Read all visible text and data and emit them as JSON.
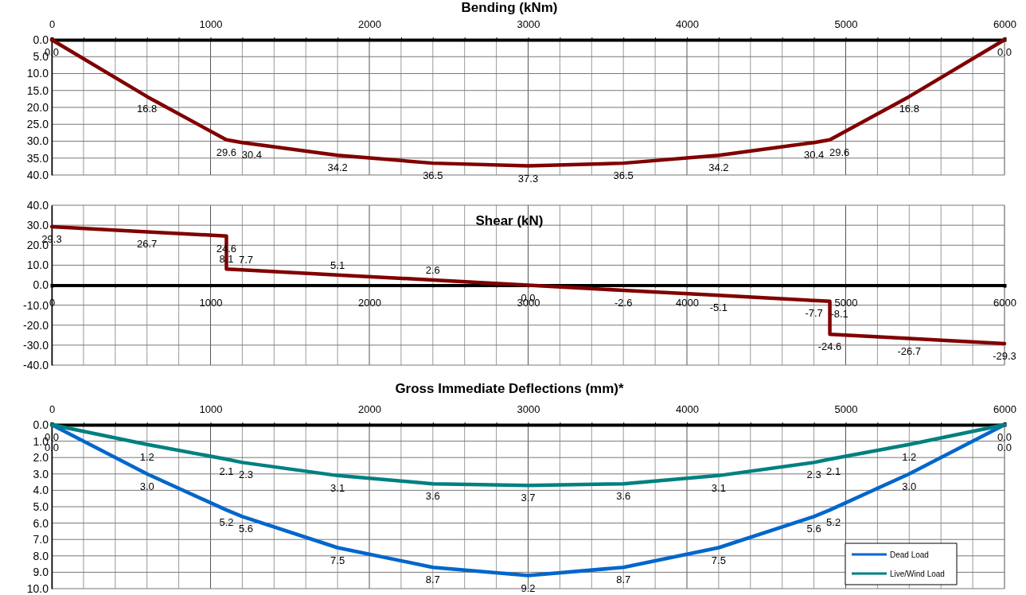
{
  "chart_data": [
    {
      "type": "line",
      "title": "Bending (kNm)",
      "x": [
        0,
        600,
        1100,
        1200,
        1800,
        2400,
        3000,
        3600,
        4200,
        4800,
        4900,
        5400,
        6000
      ],
      "series": [
        {
          "color": "#800000",
          "values": [
            0,
            16.8,
            29.6,
            30.4,
            34.2,
            36.5,
            37.3,
            36.5,
            34.2,
            30.4,
            29.6,
            16.8,
            0
          ],
          "value_labels": [
            "0.0",
            "16.8",
            "29.6",
            "30.4",
            "34.2",
            "36.5",
            "37.3",
            "36.5",
            "34.2",
            "30.4",
            "29.6",
            "16.8",
            "0.0"
          ]
        }
      ],
      "xlim": [
        0,
        6000
      ],
      "xticks": [
        0,
        {
          "value": 200,
          "label": null
        },
        {
          "value": 400,
          "label": null
        },
        {
          "value": 600,
          "label": null
        },
        {
          "value": 800,
          "label": null
        },
        1000,
        {
          "value": 1200,
          "label": null
        },
        {
          "value": 1400,
          "label": null
        },
        {
          "value": 1600,
          "label": null
        },
        {
          "value": 1800,
          "label": null
        },
        2000,
        {
          "value": 2200,
          "label": null
        },
        {
          "value": 2400,
          "label": null
        },
        {
          "value": 2600,
          "label": null
        },
        {
          "value": 2800,
          "label": null
        },
        3000,
        {
          "value": 3200,
          "label": null
        },
        {
          "value": 3400,
          "label": null
        },
        {
          "value": 3600,
          "label": null
        },
        {
          "value": 3800,
          "label": null
        },
        4000,
        {
          "value": 4200,
          "label": null
        },
        {
          "value": 4400,
          "label": null
        },
        {
          "value": 4600,
          "label": null
        },
        {
          "value": 4800,
          "label": null
        },
        5000,
        {
          "value": 5200,
          "label": null
        },
        {
          "value": 5400,
          "label": null
        },
        {
          "value": 5600,
          "label": null
        },
        {
          "value": 5800,
          "label": null
        },
        6000
      ],
      "ylim": [
        40,
        0
      ],
      "yticks": [
        {
          "value": 0,
          "label": "0.0"
        },
        {
          "value": 5,
          "label": "5.0"
        },
        {
          "value": 10,
          "label": "10.0"
        },
        {
          "value": 15,
          "label": "15.0"
        },
        {
          "value": 20,
          "label": "20.0"
        },
        {
          "value": 25,
          "label": "25.0"
        },
        {
          "value": 30,
          "label": "30.0"
        },
        {
          "value": 35,
          "label": "35.0"
        },
        {
          "value": 40,
          "label": "40.0"
        }
      ],
      "grid": true
    },
    {
      "type": "line",
      "title": "Shear (kN)",
      "x": [
        0,
        600,
        1100,
        1100,
        1200,
        1800,
        2400,
        3000,
        3600,
        4200,
        4800,
        4900,
        4900,
        5400,
        6000
      ],
      "series": [
        {
          "color": "#800000",
          "values": [
            29.3,
            26.7,
            24.6,
            8.1,
            7.7,
            5.1,
            2.6,
            0,
            -2.6,
            -5.1,
            -7.7,
            -8.1,
            -24.6,
            -26.7,
            -29.3
          ],
          "value_labels": [
            "29.3",
            "26.7",
            "24.6",
            "8.1",
            "7.7",
            "5.1",
            "2.6",
            "0.0",
            "-2.6",
            "-5.1",
            "-7.7",
            "-8.1",
            "-24.6",
            "-26.7",
            "-29.3"
          ]
        }
      ],
      "xlim": [
        0,
        6000
      ],
      "xticks": [
        0,
        {
          "value": 200,
          "label": null
        },
        {
          "value": 400,
          "label": null
        },
        {
          "value": 600,
          "label": null
        },
        {
          "value": 800,
          "label": null
        },
        1000,
        {
          "value": 1200,
          "label": null
        },
        {
          "value": 1400,
          "label": null
        },
        {
          "value": 1600,
          "label": null
        },
        {
          "value": 1800,
          "label": null
        },
        2000,
        {
          "value": 2200,
          "label": null
        },
        {
          "value": 2400,
          "label": null
        },
        {
          "value": 2600,
          "label": null
        },
        {
          "value": 2800,
          "label": null
        },
        3000,
        {
          "value": 3200,
          "label": null
        },
        {
          "value": 3400,
          "label": null
        },
        {
          "value": 3600,
          "label": null
        },
        {
          "value": 3800,
          "label": null
        },
        4000,
        {
          "value": 4200,
          "label": null
        },
        {
          "value": 4400,
          "label": null
        },
        {
          "value": 4600,
          "label": null
        },
        {
          "value": 4800,
          "label": null
        },
        5000,
        {
          "value": 5200,
          "label": null
        },
        {
          "value": 5400,
          "label": null
        },
        {
          "value": 5600,
          "label": null
        },
        {
          "value": 5800,
          "label": null
        },
        6000
      ],
      "ylim": [
        -40,
        40
      ],
      "yticks": [
        {
          "value": -40,
          "label": "-40.0"
        },
        {
          "value": -30,
          "label": "-30.0"
        },
        {
          "value": -20,
          "label": "-20.0"
        },
        {
          "value": -10,
          "label": "-10.0"
        },
        {
          "value": 0,
          "label": "0.0"
        },
        {
          "value": 10,
          "label": "10.0"
        },
        {
          "value": 20,
          "label": "20.0"
        },
        {
          "value": 30,
          "label": "30.0"
        },
        {
          "value": 40,
          "label": "40.0"
        }
      ],
      "grid": true
    },
    {
      "type": "line",
      "title": "Gross Immediate Deflections (mm)*",
      "x": [
        0,
        600,
        1100,
        1200,
        1800,
        2400,
        3000,
        3600,
        4200,
        4800,
        4900,
        5400,
        6000
      ],
      "series": [
        {
          "name": "Dead Load",
          "color": "#0066cc",
          "values": [
            0,
            3.0,
            5.2,
            5.6,
            7.5,
            8.7,
            9.2,
            8.7,
            7.5,
            5.6,
            5.2,
            3.0,
            0
          ],
          "value_labels": [
            "0.0",
            "3.0",
            "5.2",
            "5.6",
            "7.5",
            "8.7",
            "9.2",
            "8.7",
            "7.5",
            "5.6",
            "5.2",
            "3.0",
            "0.0"
          ]
        },
        {
          "name": "Live/Wind Load",
          "color": "#008080",
          "values": [
            0,
            1.2,
            2.1,
            2.3,
            3.1,
            3.6,
            3.7,
            3.6,
            3.1,
            2.3,
            2.1,
            1.2,
            0
          ],
          "value_labels": [
            "0.0",
            "1.2",
            "2.1",
            "2.3",
            "3.1",
            "3.6",
            "3.7",
            "3.6",
            "3.1",
            "2.3",
            "2.1",
            "1.2",
            "0.0"
          ]
        }
      ],
      "xlim": [
        0,
        6000
      ],
      "xticks": [
        0,
        {
          "value": 200,
          "label": null
        },
        {
          "value": 400,
          "label": null
        },
        {
          "value": 600,
          "label": null
        },
        {
          "value": 800,
          "label": null
        },
        1000,
        {
          "value": 1200,
          "label": null
        },
        {
          "value": 1400,
          "label": null
        },
        {
          "value": 1600,
          "label": null
        },
        {
          "value": 1800,
          "label": null
        },
        2000,
        {
          "value": 2200,
          "label": null
        },
        {
          "value": 2400,
          "label": null
        },
        {
          "value": 2600,
          "label": null
        },
        {
          "value": 2800,
          "label": null
        },
        3000,
        {
          "value": 3200,
          "label": null
        },
        {
          "value": 3400,
          "label": null
        },
        {
          "value": 3600,
          "label": null
        },
        {
          "value": 3800,
          "label": null
        },
        4000,
        {
          "value": 4200,
          "label": null
        },
        {
          "value": 4400,
          "label": null
        },
        {
          "value": 4600,
          "label": null
        },
        {
          "value": 4800,
          "label": null
        },
        5000,
        {
          "value": 5200,
          "label": null
        },
        {
          "value": 5400,
          "label": null
        },
        {
          "value": 5600,
          "label": null
        },
        {
          "value": 5800,
          "label": null
        },
        6000
      ],
      "ylim": [
        10,
        0
      ],
      "yticks": [
        {
          "value": 0,
          "label": "0.0"
        },
        {
          "value": 1,
          "label": "1.0"
        },
        {
          "value": 2,
          "label": "2.0"
        },
        {
          "value": 3,
          "label": "3.0"
        },
        {
          "value": 4,
          "label": "4.0"
        },
        {
          "value": 5,
          "label": "5.0"
        },
        {
          "value": 6,
          "label": "6.0"
        },
        {
          "value": 7,
          "label": "7.0"
        },
        {
          "value": 8,
          "label": "8.0"
        },
        {
          "value": 9,
          "label": "9.0"
        },
        {
          "value": 10,
          "label": "10.0"
        }
      ],
      "grid": true,
      "legend": "bottom right"
    }
  ]
}
